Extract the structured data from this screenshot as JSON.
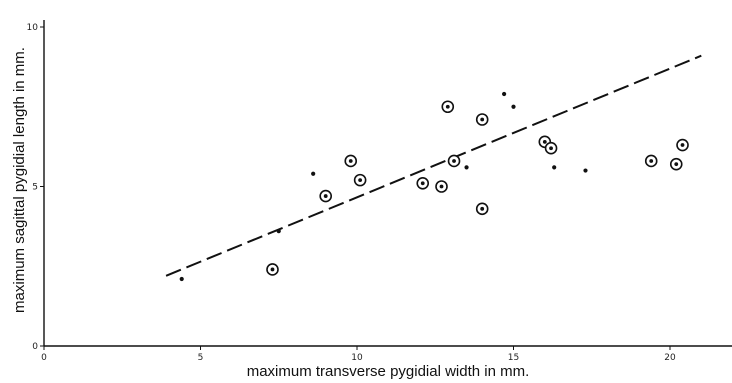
{
  "chart_data": {
    "type": "scatter",
    "title": "",
    "xlabel": "maximum transverse pygidial width in mm.",
    "ylabel": "maximum sagittal pygidial length in mm.",
    "xlim": [
      0,
      21.2
    ],
    "ylim": [
      0,
      10
    ],
    "x_ticks": [
      "0",
      "5",
      "10",
      "15",
      "20"
    ],
    "y_ticks": [
      "0",
      "5",
      "10"
    ],
    "grid": false,
    "legend": "none",
    "colors": {
      "ink": "#111111",
      "background": "#ffffff"
    },
    "series": [
      {
        "marker": "circled-dot",
        "points": [
          [
            7.3,
            2.4
          ],
          [
            9.0,
            4.7
          ],
          [
            9.8,
            5.8
          ],
          [
            10.1,
            5.2
          ],
          [
            12.1,
            5.1
          ],
          [
            12.7,
            5.0
          ],
          [
            12.9,
            7.5
          ],
          [
            13.1,
            5.8
          ],
          [
            14.0,
            7.1
          ],
          [
            14.0,
            4.3
          ],
          [
            16.0,
            6.4
          ],
          [
            16.2,
            6.2
          ],
          [
            19.4,
            5.8
          ],
          [
            20.2,
            5.7
          ],
          [
            20.4,
            6.3
          ]
        ]
      },
      {
        "marker": "dot",
        "points": [
          [
            4.4,
            2.1
          ],
          [
            7.5,
            3.6
          ],
          [
            8.6,
            5.4
          ],
          [
            13.5,
            5.6
          ],
          [
            14.7,
            7.9
          ],
          [
            15.0,
            7.5
          ],
          [
            16.3,
            5.6
          ],
          [
            17.3,
            5.5
          ]
        ]
      }
    ],
    "fit_line": {
      "style": "dashed",
      "from": [
        3.9,
        2.2
      ],
      "to": [
        21.0,
        9.1
      ]
    }
  }
}
